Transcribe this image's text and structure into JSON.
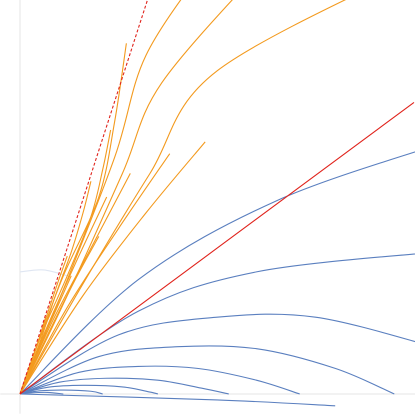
{
  "chart_data": {
    "type": "line",
    "title": "",
    "xlabel": "",
    "ylabel": "",
    "xlim": [
      -0.5,
      10
    ],
    "ylim": [
      -0.5,
      10
    ],
    "grid": false,
    "colors": {
      "orange": "#f39a1e",
      "blue": "#5a7fbf",
      "red": "#e0231c",
      "axis": "#e6e6e6"
    },
    "dashed_boundary": {
      "style": "dashed",
      "color": "#e0231c",
      "points": [
        [
          0,
          0
        ],
        [
          3.3,
          10.2
        ]
      ]
    },
    "red_line": {
      "color": "#e0231c",
      "points": [
        [
          0,
          0
        ],
        [
          10,
          7.4
        ]
      ]
    },
    "series": [
      {
        "group": "orange",
        "points": [
          [
            0,
            0
          ],
          [
            1.0,
            2.4
          ],
          [
            2.4,
            6.0
          ],
          [
            3.2,
            8.6
          ],
          [
            4.8,
            11.0
          ]
        ]
      },
      {
        "group": "orange",
        "points": [
          [
            0,
            0
          ],
          [
            1.2,
            2.5
          ],
          [
            2.6,
            5.6
          ],
          [
            3.6,
            7.9
          ],
          [
            6.3,
            11.0
          ]
        ]
      },
      {
        "group": "orange",
        "points": [
          [
            0,
            0
          ],
          [
            1.6,
            2.8
          ],
          [
            3.3,
            5.6
          ],
          [
            5.0,
            8.2
          ],
          [
            10.3,
            11.0
          ]
        ]
      },
      {
        "group": "orange",
        "points": [
          [
            0,
            0
          ],
          [
            0.5,
            1.4
          ],
          [
            1.1,
            3.0
          ],
          [
            2.0,
            5.0
          ],
          [
            2.4,
            6.9
          ],
          [
            2.7,
            8.9
          ]
        ]
      },
      {
        "group": "orange",
        "points": [
          [
            0,
            0
          ],
          [
            0.5,
            1.4
          ],
          [
            1.2,
            3.0
          ],
          [
            1.8,
            4.5
          ],
          [
            2.1,
            5.7
          ],
          [
            2.3,
            6.7
          ]
        ]
      },
      {
        "group": "orange",
        "points": [
          [
            0,
            0
          ],
          [
            0.5,
            1.3
          ],
          [
            0.9,
            2.5
          ],
          [
            1.3,
            3.6
          ],
          [
            1.6,
            4.6
          ],
          [
            1.8,
            5.4
          ]
        ]
      },
      {
        "group": "orange",
        "points": [
          [
            0,
            0
          ],
          [
            0.35,
            1.0
          ],
          [
            0.65,
            1.9
          ],
          [
            0.95,
            2.8
          ],
          [
            1.2,
            3.5
          ]
        ]
      },
      {
        "group": "orange",
        "points": [
          [
            0,
            0
          ],
          [
            0.6,
            1.5
          ],
          [
            1.4,
            3.3
          ],
          [
            2.2,
            5.0
          ]
        ]
      },
      {
        "group": "orange",
        "points": [
          [
            0,
            0
          ],
          [
            0.8,
            1.8
          ],
          [
            1.8,
            3.7
          ],
          [
            2.8,
            5.6
          ]
        ]
      },
      {
        "group": "orange",
        "points": [
          [
            0,
            0
          ],
          [
            1.2,
            2.2
          ],
          [
            2.5,
            4.2
          ],
          [
            3.8,
            6.1
          ]
        ]
      },
      {
        "group": "orange",
        "points": [
          [
            0,
            0
          ],
          [
            1.6,
            2.5
          ],
          [
            3.2,
            4.6
          ],
          [
            4.7,
            6.4
          ]
        ]
      },
      {
        "group": "orange",
        "points": [
          [
            0,
            0
          ],
          [
            0.3,
            0.85
          ],
          [
            0.5,
            1.45
          ],
          [
            0.65,
            1.95
          ]
        ]
      },
      {
        "group": "orange",
        "points": [
          [
            0,
            0
          ],
          [
            0.45,
            1.1
          ],
          [
            0.9,
            2.1
          ],
          [
            1.3,
            3.0
          ]
        ]
      },
      {
        "group": "orange",
        "points": [
          [
            0,
            0
          ],
          [
            0.7,
            1.5
          ],
          [
            1.4,
            2.9
          ],
          [
            2.0,
            4.0
          ]
        ]
      },
      {
        "group": "blue",
        "points": [
          [
            0,
            0
          ],
          [
            3.0,
            2.9
          ],
          [
            6.5,
            4.9
          ],
          [
            10.5,
            6.3
          ]
        ]
      },
      {
        "group": "blue",
        "points": [
          [
            0,
            0
          ],
          [
            3.0,
            2.1
          ],
          [
            6.0,
            3.1
          ],
          [
            10.5,
            3.6
          ]
        ]
      },
      {
        "group": "blue",
        "points": [
          [
            0,
            0
          ],
          [
            2.5,
            1.5
          ],
          [
            5.0,
            1.95
          ],
          [
            7.5,
            1.95
          ],
          [
            10.5,
            1.2
          ]
        ]
      },
      {
        "group": "blue",
        "points": [
          [
            0,
            0
          ],
          [
            2.0,
            0.95
          ],
          [
            4.0,
            1.2
          ],
          [
            6.0,
            1.15
          ],
          [
            8.0,
            0.65
          ],
          [
            9.5,
            0.0
          ]
        ]
      },
      {
        "group": "blue",
        "points": [
          [
            0,
            0
          ],
          [
            1.5,
            0.55
          ],
          [
            3.0,
            0.7
          ],
          [
            4.5,
            0.65
          ],
          [
            6.0,
            0.35
          ],
          [
            7.1,
            0.0
          ]
        ]
      },
      {
        "group": "blue",
        "points": [
          [
            0,
            0
          ],
          [
            1.0,
            0.3
          ],
          [
            2.2,
            0.4
          ],
          [
            3.5,
            0.35
          ],
          [
            4.6,
            0.15
          ],
          [
            5.3,
            0.0
          ]
        ]
      },
      {
        "group": "blue",
        "points": [
          [
            0,
            0
          ],
          [
            0.7,
            0.17
          ],
          [
            1.6,
            0.22
          ],
          [
            2.6,
            0.18
          ],
          [
            3.3,
            0.05
          ],
          [
            3.5,
            0.0
          ]
        ]
      },
      {
        "group": "blue",
        "points": [
          [
            0,
            0
          ],
          [
            0.5,
            0.08
          ],
          [
            1.1,
            0.1
          ],
          [
            1.8,
            0.07
          ],
          [
            2.1,
            0.0
          ]
        ]
      },
      {
        "group": "blue",
        "points": [
          [
            0,
            0
          ],
          [
            0.3,
            0.03
          ],
          [
            0.7,
            0.04
          ],
          [
            1.1,
            0.0
          ]
        ]
      },
      {
        "group": "blue",
        "points": [
          [
            0,
            0
          ],
          [
            5.0,
            -0.15
          ],
          [
            8.0,
            -0.3
          ]
        ]
      }
    ],
    "faint_series": [
      {
        "color": "#dfe6f2",
        "points": [
          [
            0,
            3.1
          ],
          [
            0.6,
            3.15
          ],
          [
            1.2,
            3.0
          ]
        ]
      }
    ]
  }
}
